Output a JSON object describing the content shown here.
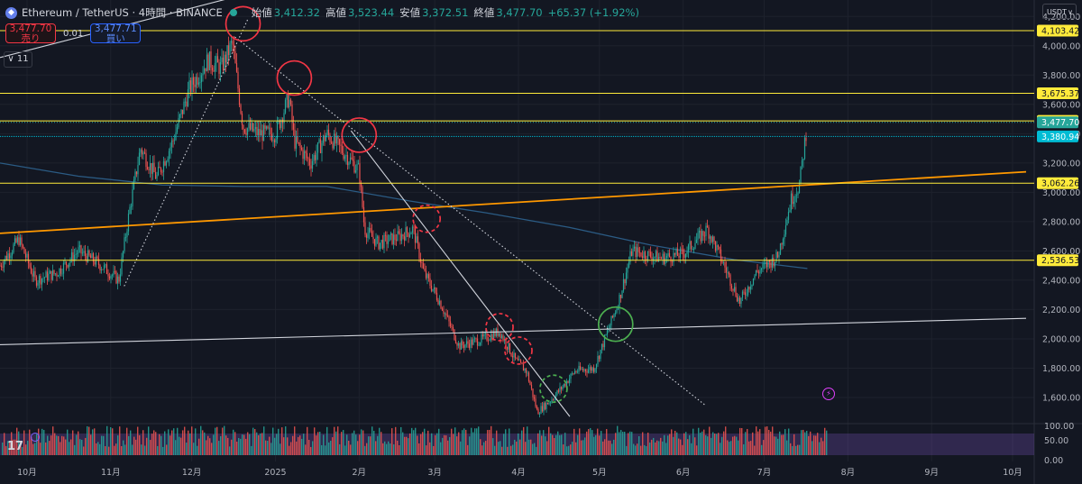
{
  "header": {
    "symbol_title": "Ethereum / TetherUS · 4時間 · BINANCE",
    "ohlc": [
      {
        "key": "始値",
        "value": "3,412.32"
      },
      {
        "key": "高値",
        "value": "3,523.44"
      },
      {
        "key": "安値",
        "value": "3,372.51"
      },
      {
        "key": "終値",
        "value": "3,477.70"
      },
      {
        "key": "",
        "value": "+65.37 (+1.92%)"
      }
    ]
  },
  "trade": {
    "sell_price": "3,477.70",
    "sell_label": "売り",
    "spread": "0.01",
    "buy_price": "3,477.71",
    "buy_label": "買い"
  },
  "indicators_toggle": "11",
  "currency_button": "USDT",
  "tv_logo": "17",
  "colors": {
    "bg": "#131722",
    "up": "#26a69a",
    "down": "#ef5350",
    "yellow": "#ffeb3b",
    "orange": "#ff9800",
    "cyan": "#00bcd4"
  },
  "chart_data": {
    "type": "candlestick",
    "x_ticks": [
      {
        "label": "10月",
        "date": "2024-10-01"
      },
      {
        "label": "11月",
        "date": "2024-11-01"
      },
      {
        "label": "12月",
        "date": "2024-12-01"
      },
      {
        "label": "2025",
        "date": "2025-01-01"
      },
      {
        "label": "2月",
        "date": "2025-02-01"
      },
      {
        "label": "3月",
        "date": "2025-03-01"
      },
      {
        "label": "4月",
        "date": "2025-04-01"
      },
      {
        "label": "5月",
        "date": "2025-05-01"
      },
      {
        "label": "6月",
        "date": "2025-06-01"
      },
      {
        "label": "7月",
        "date": "2025-07-01"
      },
      {
        "label": "8月",
        "date": "2025-08-01"
      },
      {
        "label": "9月",
        "date": "2025-09-01"
      },
      {
        "label": "10月",
        "date": "2025-10-01"
      }
    ],
    "y_ticks": [
      "1,600.00",
      "1,800.00",
      "2,000.00",
      "2,200.00",
      "2,400.00",
      "2,600.00",
      "2,800.00",
      "3,000.00",
      "3,200.00",
      "3,400.00",
      "3,600.00",
      "3,800.00",
      "4,000.00",
      "4,200.00"
    ],
    "y_range": [
      1440,
      4300
    ],
    "price_path": [
      [
        "2024-09-21",
        2500
      ],
      [
        "2024-09-28",
        2680
      ],
      [
        "2024-10-04",
        2400
      ],
      [
        "2024-10-12",
        2450
      ],
      [
        "2024-10-20",
        2600
      ],
      [
        "2024-10-27",
        2520
      ],
      [
        "2024-11-04",
        2400
      ],
      [
        "2024-11-08",
        2880
      ],
      [
        "2024-11-12",
        3300
      ],
      [
        "2024-11-18",
        3100
      ],
      [
        "2024-11-24",
        3350
      ],
      [
        "2024-11-30",
        3700
      ],
      [
        "2024-12-07",
        3900
      ],
      [
        "2024-12-12",
        3850
      ],
      [
        "2024-12-16",
        4020
      ],
      [
        "2024-12-20",
        3450
      ],
      [
        "2024-12-26",
        3400
      ],
      [
        "2025-01-01",
        3400
      ],
      [
        "2025-01-06",
        3650
      ],
      [
        "2025-01-08",
        3350
      ],
      [
        "2025-01-14",
        3200
      ],
      [
        "2025-01-20",
        3400
      ],
      [
        "2025-01-25",
        3300
      ],
      [
        "2025-02-01",
        3150
      ],
      [
        "2025-02-03",
        2750
      ],
      [
        "2025-02-08",
        2650
      ],
      [
        "2025-02-16",
        2700
      ],
      [
        "2025-02-21",
        2750
      ],
      [
        "2025-02-25",
        2450
      ],
      [
        "2025-03-03",
        2250
      ],
      [
        "2025-03-10",
        1950
      ],
      [
        "2025-03-19",
        2000
      ],
      [
        "2025-03-25",
        2050
      ],
      [
        "2025-03-31",
        1850
      ],
      [
        "2025-04-04",
        1780
      ],
      [
        "2025-04-08",
        1500
      ],
      [
        "2025-04-14",
        1600
      ],
      [
        "2025-04-22",
        1780
      ],
      [
        "2025-04-29",
        1800
      ],
      [
        "2025-05-08",
        2250
      ],
      [
        "2025-05-13",
        2600
      ],
      [
        "2025-05-24",
        2550
      ],
      [
        "2025-06-01",
        2580
      ],
      [
        "2025-06-10",
        2750
      ],
      [
        "2025-06-15",
        2550
      ],
      [
        "2025-06-22",
        2250
      ],
      [
        "2025-06-28",
        2450
      ],
      [
        "2025-07-06",
        2560
      ],
      [
        "2025-07-11",
        2950
      ],
      [
        "2025-07-14",
        3050
      ],
      [
        "2025-07-17",
        3477.7
      ]
    ],
    "horizontal_levels": [
      {
        "price": 4103.42,
        "label": "4,103.42",
        "color": "#ffeb3b"
      },
      {
        "price": 3675.37,
        "label": "3,675.37",
        "color": "#ffeb3b"
      },
      {
        "price": 3487.57,
        "label": "3,487.57",
        "color": "#ffeb3b"
      },
      {
        "price": 3062.26,
        "label": "3,062.26",
        "color": "#ffeb3b"
      },
      {
        "price": 2536.53,
        "label": "2,536.53",
        "color": "#ffeb3b"
      },
      {
        "price": 3380.94,
        "label": "3,380.94",
        "color": "#00bcd4"
      }
    ],
    "current_price": {
      "price": 3477.7,
      "label": "3,477.70",
      "color": "#26a69a"
    },
    "trendlines": [
      {
        "from": [
          "2024-09-21",
          2720
        ],
        "to": [
          "2025-10-06",
          3140
        ],
        "color": "#ff9800",
        "style": "solid"
      },
      {
        "from": [
          "2024-09-21",
          1960
        ],
        "to": [
          "2025-10-06",
          2140
        ],
        "color": "#d1d4dc",
        "style": "solid"
      },
      {
        "from": [
          "2024-09-21",
          3920
        ],
        "to": [
          "2024-12-31",
          4400
        ],
        "color": "#d1d4dc",
        "style": "solid"
      },
      {
        "from": [
          "2024-11-06",
          2360
        ],
        "to": [
          "2024-12-22",
          4190
        ],
        "color": "#d1d4dc",
        "style": "dotted"
      },
      {
        "from": [
          "2024-12-17",
          4060
        ],
        "to": [
          "2025-06-09",
          1550
        ],
        "color": "#d1d4dc",
        "style": "dotted"
      },
      {
        "from": [
          "2025-01-29",
          3420
        ],
        "to": [
          "2025-04-20",
          1470
        ],
        "color": "#d1d4dc",
        "style": "solid"
      }
    ],
    "moving_average": [
      [
        "2024-09-21",
        3200
      ],
      [
        "2024-10-20",
        3110
      ],
      [
        "2024-11-20",
        3050
      ],
      [
        "2024-12-20",
        3040
      ],
      [
        "2025-01-20",
        3040
      ],
      [
        "2025-02-20",
        2940
      ],
      [
        "2025-03-20",
        2860
      ],
      [
        "2025-04-20",
        2760
      ],
      [
        "2025-05-20",
        2640
      ],
      [
        "2025-06-20",
        2540
      ],
      [
        "2025-07-17",
        2480
      ]
    ],
    "circles": [
      {
        "at": [
          "2024-12-20",
          4150
        ],
        "color": "#f23645",
        "style": "solid"
      },
      {
        "at": [
          "2025-01-08",
          3780
        ],
        "color": "#f23645",
        "style": "solid"
      },
      {
        "at": [
          "2025-02-01",
          3390
        ],
        "color": "#f23645",
        "style": "solid"
      },
      {
        "at": [
          "2025-02-26",
          2820
        ],
        "color": "#f23645",
        "style": "dashed"
      },
      {
        "at": [
          "2025-03-25",
          2080
        ],
        "color": "#f23645",
        "style": "dashed"
      },
      {
        "at": [
          "2025-04-01",
          1920
        ],
        "color": "#f23645",
        "style": "dashed"
      },
      {
        "at": [
          "2025-04-14",
          1660
        ],
        "color": "#4caf50",
        "style": "dashed"
      },
      {
        "at": [
          "2025-05-07",
          2100
        ],
        "color": "#4caf50",
        "style": "solid"
      }
    ],
    "oscillator": {
      "y_ticks": [
        "100.00",
        "50.00",
        "0.00"
      ],
      "band": [
        25,
        75
      ]
    }
  }
}
